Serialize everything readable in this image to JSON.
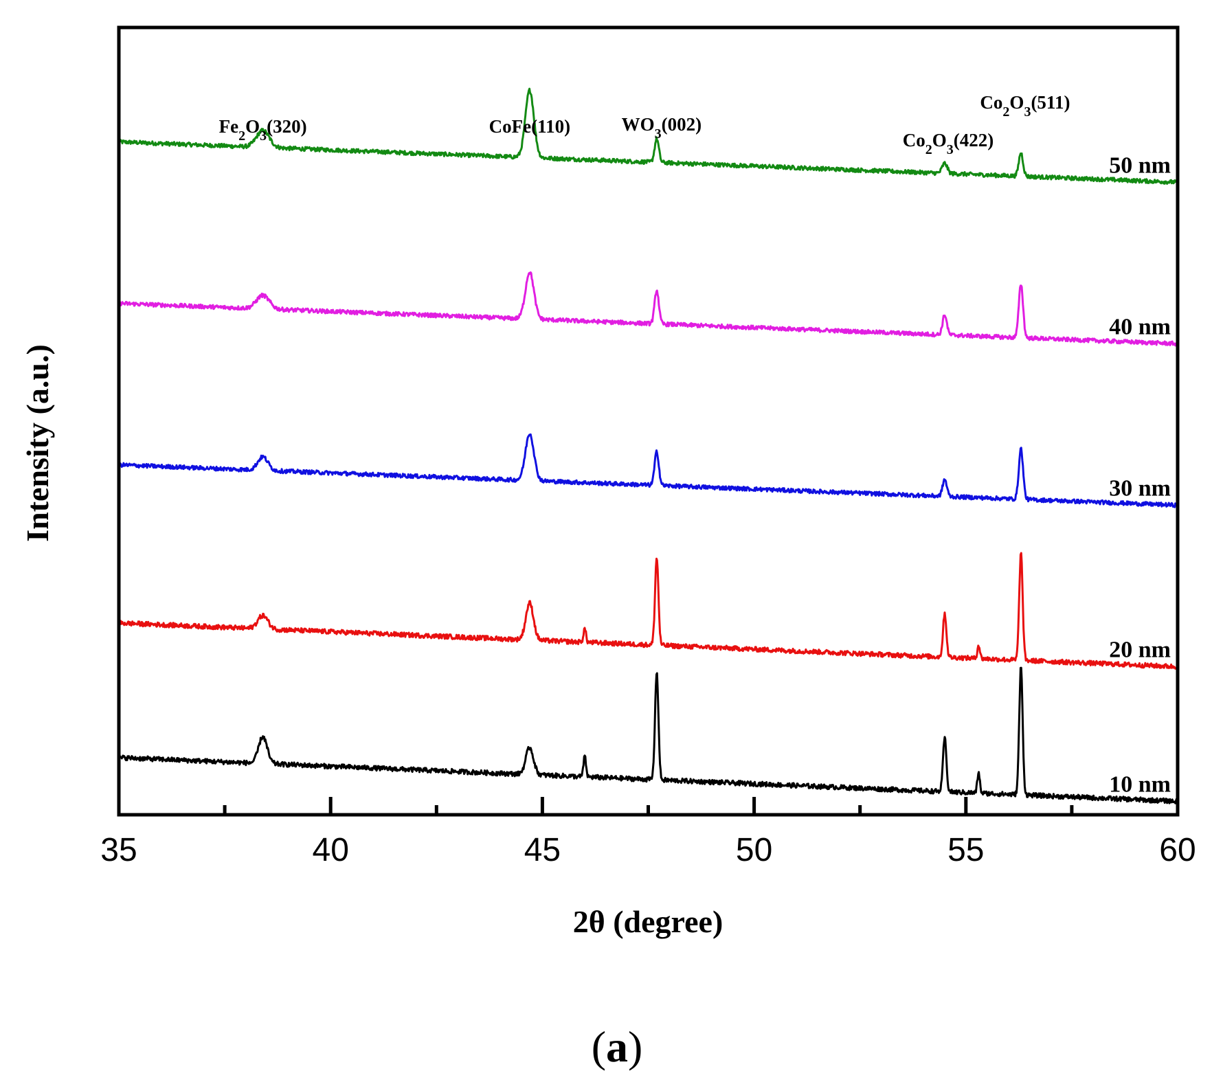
{
  "chart_data": {
    "type": "line",
    "title": "",
    "xlabel": "2θ (degree)",
    "ylabel": "Intensity (a.u.)",
    "xlim": [
      35,
      60
    ],
    "x_ticks": [
      35,
      40,
      45,
      50,
      55,
      60
    ],
    "x_minor_ticks": [
      37.5,
      42.5,
      47.5,
      52.5,
      57.5
    ],
    "y_ticks_shown": false,
    "grid": false,
    "legend": "inline labels at right end of each trace",
    "panel_label": {
      "open": "(",
      "letter": "a",
      "close": ")"
    },
    "peak_annotations": [
      {
        "compound": "Fe",
        "sub1": "2",
        "mid": "O",
        "sub2": "3",
        "plane": "(320)",
        "x": 38.4
      },
      {
        "compound": "CoFe",
        "sub1": "",
        "mid": "",
        "sub2": "",
        "plane": "(110)",
        "x": 44.7
      },
      {
        "compound": "WO",
        "sub1": "3",
        "mid": "",
        "sub2": "",
        "plane": "(002)",
        "x": 47.7
      },
      {
        "compound": "Co",
        "sub1": "2",
        "mid": "O",
        "sub2": "3",
        "plane": "(422)",
        "x": 54.5
      },
      {
        "compound": "Co",
        "sub1": "2",
        "mid": "O",
        "sub2": "3",
        "plane": "(511)",
        "x": 56.3
      }
    ],
    "series": [
      {
        "name": "50 nm",
        "color": "#138a13",
        "baseline_start": 100,
        "baseline_end": 94,
        "noise": 0.6,
        "peaks": [
          {
            "x": 38.4,
            "height": 2.5,
            "width": 0.15
          },
          {
            "x": 44.7,
            "height": 10,
            "width": 0.1
          },
          {
            "x": 47.7,
            "height": 3.5,
            "width": 0.05
          },
          {
            "x": 54.5,
            "height": 1.5,
            "width": 0.06
          },
          {
            "x": 56.3,
            "height": 3.5,
            "width": 0.05
          }
        ]
      },
      {
        "name": "40 nm",
        "color": "#e11ee1",
        "baseline_start": 76,
        "baseline_end": 70,
        "noise": 0.6,
        "peaks": [
          {
            "x": 38.4,
            "height": 2,
            "width": 0.15
          },
          {
            "x": 44.7,
            "height": 7,
            "width": 0.1
          },
          {
            "x": 47.7,
            "height": 5,
            "width": 0.05
          },
          {
            "x": 54.5,
            "height": 3,
            "width": 0.05
          },
          {
            "x": 56.3,
            "height": 8,
            "width": 0.05
          }
        ]
      },
      {
        "name": "30 nm",
        "color": "#1010e0",
        "baseline_start": 52,
        "baseline_end": 46,
        "noise": 0.6,
        "peaks": [
          {
            "x": 38.4,
            "height": 2,
            "width": 0.12
          },
          {
            "x": 44.7,
            "height": 7,
            "width": 0.1
          },
          {
            "x": 47.7,
            "height": 5,
            "width": 0.05
          },
          {
            "x": 54.5,
            "height": 2.5,
            "width": 0.05
          },
          {
            "x": 56.3,
            "height": 7.5,
            "width": 0.05
          }
        ]
      },
      {
        "name": "20 nm",
        "color": "#e81010",
        "baseline_start": 28.5,
        "baseline_end": 22,
        "noise": 0.7,
        "peaks": [
          {
            "x": 38.4,
            "height": 2,
            "width": 0.12
          },
          {
            "x": 44.7,
            "height": 5.5,
            "width": 0.09
          },
          {
            "x": 46.0,
            "height": 2,
            "width": 0.03
          },
          {
            "x": 47.7,
            "height": 13,
            "width": 0.04
          },
          {
            "x": 54.5,
            "height": 6.5,
            "width": 0.04
          },
          {
            "x": 55.3,
            "height": 2,
            "width": 0.03
          },
          {
            "x": 56.3,
            "height": 16,
            "width": 0.04
          }
        ]
      },
      {
        "name": "10 nm",
        "color": "#000000",
        "baseline_start": 8.5,
        "baseline_end": 2,
        "noise": 0.7,
        "peaks": [
          {
            "x": 38.4,
            "height": 4,
            "width": 0.1
          },
          {
            "x": 44.7,
            "height": 4,
            "width": 0.09
          },
          {
            "x": 46.0,
            "height": 3,
            "width": 0.03
          },
          {
            "x": 47.7,
            "height": 16,
            "width": 0.04
          },
          {
            "x": 54.5,
            "height": 8,
            "width": 0.04
          },
          {
            "x": 55.3,
            "height": 3,
            "width": 0.03
          },
          {
            "x": 56.3,
            "height": 19,
            "width": 0.04
          }
        ]
      }
    ]
  }
}
